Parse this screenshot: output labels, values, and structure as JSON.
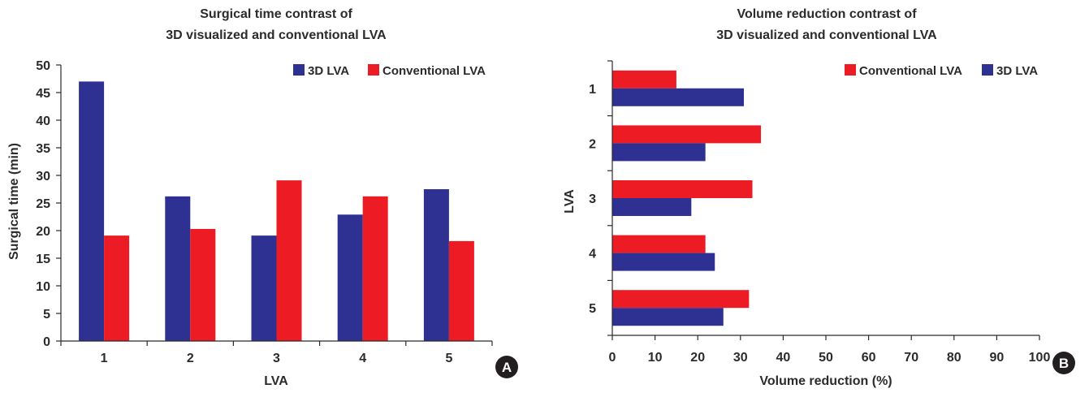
{
  "colors": {
    "series_3d": "#2E3192",
    "series_conventional": "#ED1C24",
    "axis": "#2b2b2b",
    "badge": "#231F20"
  },
  "chart_data": [
    {
      "type": "bar",
      "orientation": "vertical",
      "panel_label": "A",
      "title_line1": "Surgical time contrast of",
      "title_line2": "3D visualized and conventional LVA",
      "xlabel": "LVA",
      "ylabel": "Surgical time (min)",
      "categories": [
        "1",
        "2",
        "3",
        "4",
        "5"
      ],
      "ylim": [
        0,
        50
      ],
      "yticks": [
        "0",
        "5",
        "10",
        "15",
        "20",
        "25",
        "30",
        "35",
        "40",
        "45",
        "50"
      ],
      "legend_position": "top-right",
      "series": [
        {
          "name": "3D LVA",
          "color": "#2E3192",
          "values": [
            47,
            26.2,
            19.1,
            22.9,
            27.5
          ]
        },
        {
          "name": "Conventional LVA",
          "color": "#ED1C24",
          "values": [
            19.1,
            20.3,
            29.1,
            26.2,
            18.1
          ]
        }
      ]
    },
    {
      "type": "bar",
      "orientation": "horizontal",
      "panel_label": "B",
      "title_line1": "Volume reduction contrast of",
      "title_line2": "3D visualized and conventional LVA",
      "xlabel": "Volume reduction (%)",
      "ylabel": "LVA",
      "categories": [
        "1",
        "2",
        "3",
        "4",
        "5"
      ],
      "xlim": [
        0,
        100
      ],
      "xticks": [
        "0",
        "10",
        "20",
        "30",
        "40",
        "50",
        "60",
        "70",
        "80",
        "90",
        "100"
      ],
      "legend_position": "top-right",
      "series": [
        {
          "name": "Conventional LVA",
          "color": "#ED1C24",
          "values": [
            15,
            34.8,
            32.8,
            21.8,
            32
          ]
        },
        {
          "name": "3D LVA",
          "color": "#2E3192",
          "values": [
            30.8,
            21.8,
            18.5,
            24,
            26
          ]
        }
      ]
    }
  ]
}
